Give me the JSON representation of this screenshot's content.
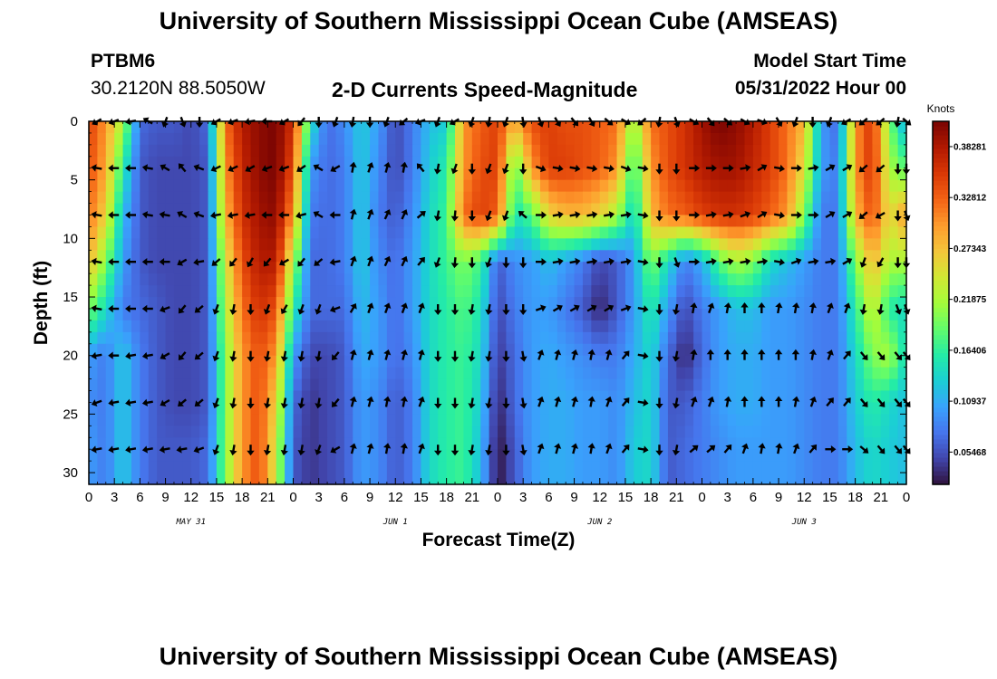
{
  "header": {
    "title": "University of Southern Mississippi Ocean Cube (AMSEAS)",
    "station_id": "PTBM6",
    "station_coords": "30.2120N  88.5050W",
    "subtitle": "2-D Currents Speed-Magnitude",
    "model_start_label": "Model Start Time",
    "model_start_value": "05/31/2022 Hour 00"
  },
  "footer": {
    "title": "University of Southern Mississippi Ocean Cube (AMSEAS)"
  },
  "chart_data": {
    "type": "heatmap",
    "title": "2-D Currents Speed-Magnitude",
    "xlabel": "Forecast Time(Z)",
    "ylabel": "Depth (ft)",
    "x_range_hours": [
      0,
      96
    ],
    "y_range_ft": [
      0,
      31
    ],
    "x_ticks": [
      "0",
      "3",
      "6",
      "9",
      "12",
      "15",
      "18",
      "21",
      "0",
      "3",
      "6",
      "9",
      "12",
      "15",
      "18",
      "21",
      "0",
      "3",
      "6",
      "9",
      "12",
      "15",
      "18",
      "21",
      "0",
      "3",
      "6",
      "9",
      "12",
      "15",
      "18",
      "21",
      "0"
    ],
    "y_ticks": [
      "0",
      "5",
      "10",
      "15",
      "20",
      "25",
      "30"
    ],
    "day_labels": [
      "MAY 31",
      "JUN 1",
      "JUN 2",
      "JUN 3"
    ],
    "colorbar": {
      "unit": "Knots",
      "min": 0.02,
      "max": 0.41,
      "ticks": [
        "0.05468",
        "0.10937",
        "0.16406",
        "0.21875",
        "0.27343",
        "0.32812",
        "0.38281"
      ],
      "palette": [
        "#30123b",
        "#4145ab",
        "#4675ed",
        "#39a2fc",
        "#1bcfd4",
        "#24eca6",
        "#61fc6c",
        "#a4fc3b",
        "#d1e834",
        "#f3c63a",
        "#fe9b2d",
        "#f36315",
        "#d93806",
        "#b11901",
        "#7a0402"
      ]
    },
    "speed_grid_depths_ft": [
      0,
      4,
      8,
      12,
      16,
      20,
      24,
      28,
      31
    ],
    "speed_grid_hours": [
      0,
      2,
      4,
      6,
      8,
      10,
      12,
      14,
      16,
      18,
      20,
      22,
      24,
      26,
      28,
      30,
      32,
      34,
      36,
      38,
      40,
      42,
      44,
      46,
      48,
      50,
      52,
      54,
      56,
      58,
      60,
      62,
      64,
      66,
      68,
      70,
      72,
      74,
      76,
      78,
      80,
      82,
      84,
      86,
      88,
      90,
      92,
      94,
      96
    ],
    "speed_knots": [
      [
        0.35,
        0.3,
        0.22,
        0.07,
        0.06,
        0.06,
        0.05,
        0.07,
        0.32,
        0.38,
        0.4,
        0.41,
        0.36,
        0.15,
        0.07,
        0.09,
        0.13,
        0.1,
        0.05,
        0.08,
        0.12,
        0.13,
        0.3,
        0.33,
        0.35,
        0.28,
        0.34,
        0.35,
        0.34,
        0.34,
        0.33,
        0.32,
        0.2,
        0.32,
        0.34,
        0.36,
        0.39,
        0.41,
        0.4,
        0.38,
        0.35,
        0.32,
        0.28,
        0.1,
        0.07,
        0.3,
        0.36,
        0.2,
        0.1
      ],
      [
        0.34,
        0.29,
        0.16,
        0.06,
        0.05,
        0.05,
        0.05,
        0.06,
        0.3,
        0.37,
        0.4,
        0.41,
        0.34,
        0.1,
        0.07,
        0.08,
        0.13,
        0.09,
        0.05,
        0.08,
        0.13,
        0.16,
        0.3,
        0.34,
        0.35,
        0.18,
        0.3,
        0.35,
        0.35,
        0.34,
        0.33,
        0.3,
        0.16,
        0.3,
        0.34,
        0.36,
        0.38,
        0.39,
        0.39,
        0.37,
        0.35,
        0.32,
        0.25,
        0.1,
        0.08,
        0.3,
        0.36,
        0.22,
        0.18
      ],
      [
        0.32,
        0.26,
        0.12,
        0.06,
        0.05,
        0.05,
        0.05,
        0.06,
        0.28,
        0.36,
        0.39,
        0.4,
        0.3,
        0.08,
        0.07,
        0.08,
        0.13,
        0.08,
        0.06,
        0.09,
        0.14,
        0.17,
        0.32,
        0.35,
        0.33,
        0.15,
        0.18,
        0.26,
        0.28,
        0.28,
        0.26,
        0.22,
        0.13,
        0.28,
        0.32,
        0.33,
        0.35,
        0.36,
        0.36,
        0.35,
        0.33,
        0.3,
        0.2,
        0.08,
        0.08,
        0.28,
        0.34,
        0.25,
        0.3
      ],
      [
        0.28,
        0.2,
        0.1,
        0.06,
        0.05,
        0.05,
        0.05,
        0.06,
        0.24,
        0.34,
        0.38,
        0.38,
        0.22,
        0.07,
        0.07,
        0.08,
        0.13,
        0.09,
        0.07,
        0.1,
        0.14,
        0.17,
        0.2,
        0.17,
        0.06,
        0.09,
        0.1,
        0.12,
        0.1,
        0.08,
        0.05,
        0.06,
        0.1,
        0.2,
        0.14,
        0.08,
        0.11,
        0.18,
        0.22,
        0.2,
        0.14,
        0.12,
        0.1,
        0.08,
        0.08,
        0.2,
        0.28,
        0.22,
        0.22
      ],
      [
        0.2,
        0.14,
        0.08,
        0.07,
        0.06,
        0.05,
        0.05,
        0.06,
        0.22,
        0.32,
        0.36,
        0.34,
        0.16,
        0.07,
        0.07,
        0.07,
        0.12,
        0.1,
        0.07,
        0.1,
        0.14,
        0.16,
        0.18,
        0.15,
        0.05,
        0.08,
        0.1,
        0.1,
        0.08,
        0.06,
        0.03,
        0.06,
        0.1,
        0.16,
        0.1,
        0.05,
        0.08,
        0.1,
        0.12,
        0.12,
        0.1,
        0.1,
        0.09,
        0.08,
        0.08,
        0.16,
        0.24,
        0.16,
        0.14
      ],
      [
        0.1,
        0.08,
        0.13,
        0.08,
        0.06,
        0.05,
        0.05,
        0.06,
        0.2,
        0.3,
        0.34,
        0.3,
        0.1,
        0.05,
        0.05,
        0.06,
        0.11,
        0.1,
        0.07,
        0.09,
        0.14,
        0.16,
        0.17,
        0.14,
        0.04,
        0.07,
        0.1,
        0.11,
        0.1,
        0.09,
        0.08,
        0.08,
        0.11,
        0.14,
        0.07,
        0.03,
        0.07,
        0.1,
        0.11,
        0.11,
        0.1,
        0.1,
        0.09,
        0.08,
        0.08,
        0.14,
        0.2,
        0.22,
        0.14
      ],
      [
        0.09,
        0.08,
        0.13,
        0.08,
        0.06,
        0.05,
        0.05,
        0.06,
        0.2,
        0.3,
        0.34,
        0.26,
        0.07,
        0.04,
        0.05,
        0.06,
        0.1,
        0.09,
        0.06,
        0.08,
        0.14,
        0.16,
        0.17,
        0.13,
        0.03,
        0.07,
        0.1,
        0.11,
        0.11,
        0.1,
        0.1,
        0.09,
        0.12,
        0.14,
        0.06,
        0.06,
        0.08,
        0.1,
        0.11,
        0.11,
        0.1,
        0.1,
        0.09,
        0.08,
        0.08,
        0.13,
        0.16,
        0.14,
        0.12
      ],
      [
        0.1,
        0.08,
        0.13,
        0.08,
        0.06,
        0.06,
        0.06,
        0.07,
        0.2,
        0.3,
        0.34,
        0.24,
        0.06,
        0.04,
        0.05,
        0.06,
        0.1,
        0.09,
        0.06,
        0.08,
        0.14,
        0.16,
        0.17,
        0.12,
        0.02,
        0.06,
        0.1,
        0.11,
        0.11,
        0.1,
        0.1,
        0.09,
        0.13,
        0.14,
        0.06,
        0.07,
        0.08,
        0.09,
        0.1,
        0.1,
        0.1,
        0.1,
        0.09,
        0.08,
        0.08,
        0.12,
        0.14,
        0.13,
        0.12
      ],
      [
        0.1,
        0.08,
        0.13,
        0.08,
        0.06,
        0.06,
        0.06,
        0.07,
        0.2,
        0.3,
        0.34,
        0.24,
        0.06,
        0.04,
        0.05,
        0.06,
        0.1,
        0.09,
        0.06,
        0.08,
        0.14,
        0.16,
        0.17,
        0.12,
        0.02,
        0.06,
        0.1,
        0.11,
        0.11,
        0.1,
        0.1,
        0.09,
        0.13,
        0.14,
        0.06,
        0.07,
        0.08,
        0.09,
        0.1,
        0.1,
        0.1,
        0.1,
        0.09,
        0.08,
        0.08,
        0.12,
        0.14,
        0.13,
        0.12
      ]
    ],
    "arrow_depths_ft": [
      0,
      4,
      8,
      12,
      16,
      20,
      24,
      28
    ],
    "arrow_hours": [
      1,
      3,
      5,
      7,
      9,
      11,
      13,
      15,
      17,
      19,
      21,
      23,
      25,
      27,
      29,
      31,
      33,
      35,
      37,
      39,
      41,
      43,
      45,
      47,
      49,
      51,
      53,
      55,
      57,
      59,
      61,
      63,
      65,
      67,
      69,
      71,
      73,
      75,
      77,
      79,
      81,
      83,
      85,
      87,
      89,
      91,
      93,
      95,
      96
    ],
    "arrow_directions_deg": [
      [
        240,
        250,
        260,
        300,
        200,
        160,
        180,
        240,
        250,
        260,
        270,
        240,
        220,
        180,
        200,
        190,
        180,
        200,
        230,
        250,
        200,
        240,
        200,
        190,
        200,
        170,
        160,
        150,
        140,
        150,
        130,
        120,
        230,
        190,
        160,
        120,
        140,
        130,
        120,
        110,
        150,
        200,
        180,
        200,
        240,
        230,
        230,
        190,
        130
      ],
      [
        280,
        270,
        270,
        280,
        300,
        320,
        290,
        245,
        245,
        240,
        250,
        250,
        235,
        300,
        240,
        10,
        20,
        15,
        10,
        320,
        190,
        200,
        180,
        200,
        200,
        180,
        110,
        100,
        100,
        100,
        100,
        110,
        100,
        180,
        180,
        90,
        90,
        90,
        80,
        60,
        100,
        90,
        80,
        60,
        60,
        230,
        230,
        180,
        180
      ],
      [
        280,
        270,
        270,
        280,
        280,
        300,
        290,
        260,
        260,
        260,
        270,
        270,
        255,
        300,
        270,
        15,
        20,
        25,
        25,
        50,
        190,
        185,
        180,
        200,
        200,
        310,
        90,
        80,
        80,
        80,
        80,
        80,
        100,
        180,
        180,
        90,
        80,
        80,
        70,
        60,
        100,
        90,
        90,
        60,
        60,
        230,
        240,
        180,
        160
      ],
      [
        280,
        270,
        270,
        270,
        270,
        240,
        260,
        230,
        220,
        210,
        220,
        240,
        220,
        230,
        260,
        20,
        20,
        25,
        25,
        40,
        200,
        185,
        180,
        200,
        180,
        180,
        90,
        80,
        80,
        80,
        80,
        80,
        100,
        180,
        160,
        90,
        80,
        80,
        80,
        80,
        100,
        70,
        80,
        80,
        60,
        200,
        210,
        180,
        180
      ],
      [
        280,
        270,
        270,
        270,
        250,
        220,
        230,
        200,
        190,
        180,
        200,
        210,
        200,
        200,
        250,
        30,
        20,
        20,
        20,
        20,
        180,
        180,
        190,
        190,
        180,
        180,
        70,
        60,
        60,
        60,
        60,
        70,
        100,
        180,
        190,
        10,
        20,
        10,
        0,
        0,
        10,
        10,
        10,
        20,
        20,
        190,
        190,
        160,
        160
      ],
      [
        260,
        270,
        260,
        260,
        240,
        220,
        230,
        200,
        190,
        180,
        190,
        190,
        190,
        190,
        220,
        15,
        15,
        15,
        15,
        15,
        180,
        180,
        190,
        190,
        180,
        170,
        20,
        15,
        15,
        10,
        15,
        40,
        100,
        180,
        190,
        10,
        0,
        0,
        0,
        0,
        0,
        0,
        10,
        20,
        40,
        140,
        140,
        140,
        140
      ],
      [
        250,
        260,
        260,
        260,
        240,
        230,
        230,
        200,
        190,
        180,
        190,
        190,
        190,
        190,
        220,
        15,
        15,
        10,
        10,
        20,
        180,
        180,
        190,
        190,
        180,
        170,
        20,
        15,
        15,
        10,
        20,
        40,
        100,
        180,
        190,
        20,
        20,
        10,
        0,
        0,
        0,
        10,
        20,
        40,
        40,
        140,
        140,
        140,
        140
      ],
      [
        260,
        260,
        260,
        260,
        260,
        260,
        250,
        200,
        190,
        180,
        190,
        190,
        190,
        200,
        240,
        15,
        15,
        10,
        10,
        20,
        180,
        180,
        190,
        190,
        180,
        170,
        20,
        15,
        15,
        10,
        20,
        40,
        100,
        180,
        190,
        50,
        50,
        40,
        20,
        10,
        10,
        20,
        40,
        90,
        90,
        130,
        140,
        140,
        140
      ]
    ]
  }
}
